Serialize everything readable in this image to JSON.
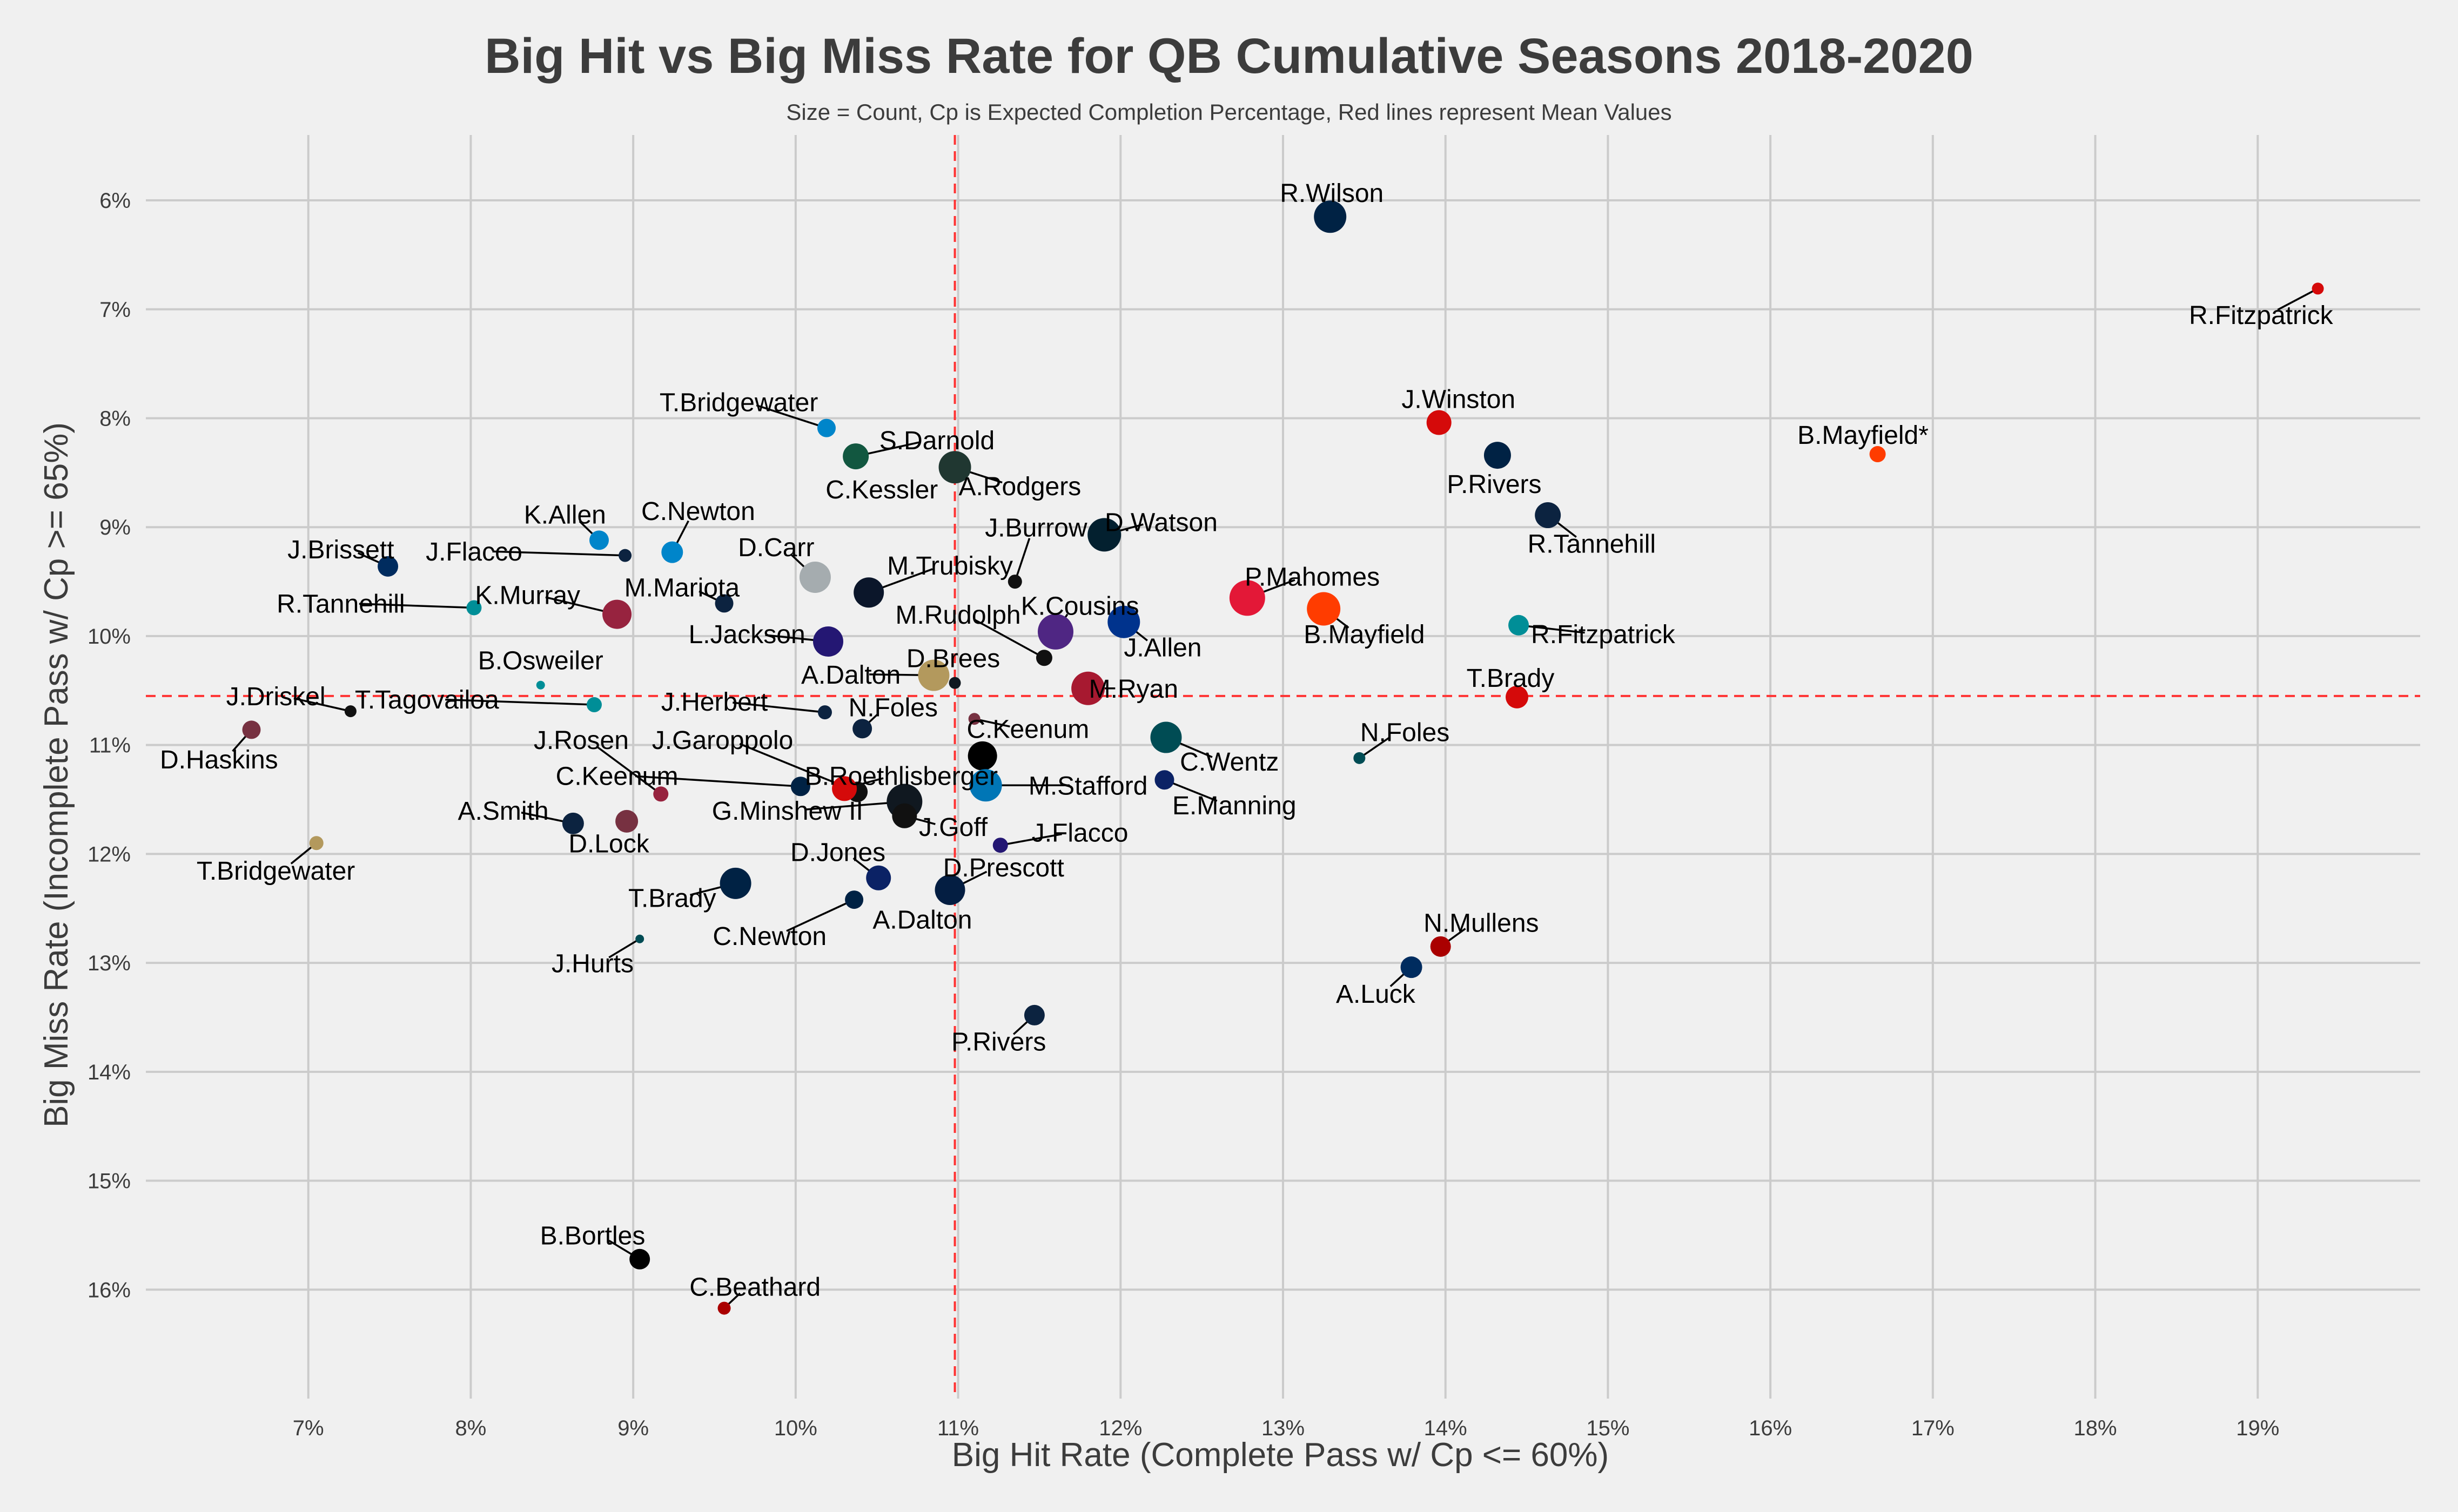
{
  "chart_data": {
    "type": "scatter",
    "title": "Big Hit vs Big Miss Rate for QB Cumulative Seasons 2018-2020",
    "subtitle": "Size = Count, Cp is Expected Completion Percentage, Red lines represent Mean Values",
    "xlabel": "Big Hit Rate (Complete Pass w/ Cp <= 60%)",
    "ylabel": "Big Miss Rate (Incomplete Pass w/ Cp >= 65%)",
    "xlim": [
      6.0,
      20.0
    ],
    "ylim": [
      5.4,
      17.0
    ],
    "y_inverted": true,
    "x_ticks": [
      7,
      8,
      9,
      10,
      11,
      12,
      13,
      14,
      15,
      16,
      17,
      18,
      19
    ],
    "x_tick_labels": [
      "7%",
      "8%",
      "9%",
      "10%",
      "11%",
      "12%",
      "13%",
      "14%",
      "15%",
      "16%",
      "17%",
      "18%",
      "19%"
    ],
    "y_ticks": [
      6,
      7,
      8,
      9,
      10,
      11,
      12,
      13,
      14,
      15,
      16
    ],
    "y_tick_labels": [
      "6%",
      "7%",
      "8%",
      "9%",
      "10%",
      "11%",
      "12%",
      "13%",
      "14%",
      "15%",
      "16%"
    ],
    "grid": true,
    "mean_lines": {
      "x": 10.98,
      "y": 10.55,
      "color": "#ff3333"
    },
    "points": [
      {
        "name": "R.Wilson",
        "x": 13.29,
        "y": 6.15,
        "size": 30,
        "color": "#002244",
        "lx": 13.3,
        "ly": 5.93
      },
      {
        "name": "R.Fitzpatrick",
        "x": 19.37,
        "y": 6.81,
        "size": 11,
        "color": "#d50a0a",
        "lx": 19.02,
        "ly": 7.05
      },
      {
        "name": "J.Winston",
        "x": 13.96,
        "y": 8.04,
        "size": 23,
        "color": "#d50a0a",
        "lx": 14.08,
        "ly": 7.82
      },
      {
        "name": "B.Mayfield*",
        "x": 16.66,
        "y": 8.33,
        "size": 15,
        "color": "#ff3c00",
        "lx": 16.57,
        "ly": 8.15
      },
      {
        "name": "P.Rivers",
        "x": 14.32,
        "y": 8.34,
        "size": 25,
        "color": "#002244",
        "lx": 14.3,
        "ly": 8.6
      },
      {
        "name": "R.Tannehill",
        "x": 14.63,
        "y": 8.89,
        "size": 24,
        "color": "#0c2340",
        "lx": 14.9,
        "ly": 9.15
      },
      {
        "name": "T.Bridgewater",
        "x": 10.19,
        "y": 8.09,
        "size": 17,
        "color": "#0085ca",
        "lx": 9.65,
        "ly": 7.85
      },
      {
        "name": "S.Darnold",
        "x": 10.37,
        "y": 8.35,
        "size": 24,
        "color": "#125740",
        "lx": 10.87,
        "ly": 8.2
      },
      {
        "name": "A.Rodgers",
        "x": 10.98,
        "y": 8.45,
        "size": 30,
        "color": "#203731",
        "lx": 11.38,
        "ly": 8.62
      },
      {
        "name": "C.Kessler",
        "x": 10.62,
        "y": 8.6,
        "size": 0,
        "color": "#000000",
        "lx": 10.53,
        "ly": 8.65
      },
      {
        "name": "D.Watson",
        "x": 11.9,
        "y": 9.07,
        "size": 31,
        "color": "#03202f",
        "lx": 12.25,
        "ly": 8.95
      },
      {
        "name": "J.Burrow",
        "x": 11.35,
        "y": 9.5,
        "size": 13,
        "color": "#111111",
        "lx": 11.48,
        "ly": 9.0
      },
      {
        "name": "C.Newton",
        "x": 9.24,
        "y": 9.23,
        "size": 20,
        "color": "#0085ca",
        "lx": 9.4,
        "ly": 8.85
      },
      {
        "name": "K.Allen",
        "x": 8.79,
        "y": 9.12,
        "size": 18,
        "color": "#0085ca",
        "lx": 8.58,
        "ly": 8.88
      },
      {
        "name": "J.Flacco",
        "x": 8.95,
        "y": 9.26,
        "size": 12,
        "color": "#0c2340",
        "lx": 8.02,
        "ly": 9.22
      },
      {
        "name": "J.Brissett",
        "x": 7.49,
        "y": 9.36,
        "size": 19,
        "color": "#002c5f",
        "lx": 7.2,
        "ly": 9.2
      },
      {
        "name": "R.Tannehill",
        "x": 8.02,
        "y": 9.74,
        "size": 14,
        "color": "#008e97",
        "lx": 7.2,
        "ly": 9.7
      },
      {
        "name": "D.Carr",
        "x": 10.12,
        "y": 9.46,
        "size": 29,
        "color": "#a5acaf",
        "lx": 9.88,
        "ly": 9.18
      },
      {
        "name": "M.Trubisky",
        "x": 10.45,
        "y": 9.6,
        "size": 28,
        "color": "#0b162a",
        "lx": 10.95,
        "ly": 9.35
      },
      {
        "name": "M.Mariota",
        "x": 9.56,
        "y": 9.7,
        "size": 17,
        "color": "#0c2340",
        "lx": 9.3,
        "ly": 9.55
      },
      {
        "name": "K.Murray",
        "x": 8.9,
        "y": 9.8,
        "size": 27,
        "color": "#97233f",
        "lx": 8.35,
        "ly": 9.62
      },
      {
        "name": "P.Mahomes",
        "x": 12.78,
        "y": 9.65,
        "size": 33,
        "color": "#e31837",
        "lx": 13.18,
        "ly": 9.45
      },
      {
        "name": "B.Mayfield",
        "x": 13.25,
        "y": 9.75,
        "size": 31,
        "color": "#ff3c00",
        "lx": 13.5,
        "ly": 9.98
      },
      {
        "name": "K.Cousins",
        "x": 11.6,
        "y": 9.96,
        "size": 33,
        "color": "#4f2683",
        "lx": 11.75,
        "ly": 9.72
      },
      {
        "name": "J.Allen",
        "x": 12.02,
        "y": 9.87,
        "size": 30,
        "color": "#00338d",
        "lx": 12.26,
        "ly": 10.1
      },
      {
        "name": "M.Rudolph",
        "x": 11.53,
        "y": 10.2,
        "size": 15,
        "color": "#111111",
        "lx": 11.0,
        "ly": 9.8
      },
      {
        "name": "R.Fitzpatrick",
        "x": 14.45,
        "y": 9.9,
        "size": 19,
        "color": "#008e97",
        "lx": 14.97,
        "ly": 9.98
      },
      {
        "name": "L.Jackson",
        "x": 10.2,
        "y": 10.05,
        "size": 28,
        "color": "#241773",
        "lx": 9.7,
        "ly": 9.98
      },
      {
        "name": "D.Brees",
        "x": 10.98,
        "y": 10.43,
        "size": 11,
        "color": "#101820",
        "lx": 10.97,
        "ly": 10.2
      },
      {
        "name": "A.Dalton",
        "x": 10.85,
        "y": 10.36,
        "size": 29,
        "color": "#b3995d",
        "lx": 10.34,
        "ly": 10.35
      },
      {
        "name": "B.Osweiler",
        "x": 8.43,
        "y": 10.45,
        "size": 8,
        "color": "#008e97",
        "lx": 8.43,
        "ly": 10.22
      },
      {
        "name": "T.Brady",
        "x": 14.44,
        "y": 10.56,
        "size": 21,
        "color": "#d50a0a",
        "lx": 14.4,
        "ly": 10.38
      },
      {
        "name": "M.Ryan",
        "x": 11.8,
        "y": 10.48,
        "size": 31,
        "color": "#a71930",
        "lx": 12.08,
        "ly": 10.48
      },
      {
        "name": "J.Driskel",
        "x": 7.26,
        "y": 10.69,
        "size": 11,
        "color": "#111111",
        "lx": 6.8,
        "ly": 10.55
      },
      {
        "name": "T.Tagovailoa",
        "x": 8.76,
        "y": 10.63,
        "size": 14,
        "color": "#008e97",
        "lx": 7.73,
        "ly": 10.58
      },
      {
        "name": "J.Herbert",
        "x": 10.18,
        "y": 10.7,
        "size": 13,
        "color": "#0c2340",
        "lx": 9.5,
        "ly": 10.6
      },
      {
        "name": "N.Foles",
        "x": 10.41,
        "y": 10.85,
        "size": 18,
        "color": "#0c2340",
        "lx": 10.6,
        "ly": 10.65
      },
      {
        "name": "C.Keenum",
        "x": 11.1,
        "y": 10.76,
        "size": 11,
        "color": "#773141",
        "lx": 11.43,
        "ly": 10.85
      },
      {
        "name": "D.Haskins",
        "x": 6.65,
        "y": 10.86,
        "size": 17,
        "color": "#773141",
        "lx": 6.45,
        "ly": 11.13
      },
      {
        "name": "C.Wentz",
        "x": 12.28,
        "y": 10.93,
        "size": 29,
        "color": "#004c54",
        "lx": 12.67,
        "ly": 11.15
      },
      {
        "name": "N.Foles",
        "x": 13.47,
        "y": 11.12,
        "size": 11,
        "color": "#004c54",
        "lx": 13.75,
        "ly": 10.88
      },
      {
        "name": "J.Rosen",
        "x": 9.17,
        "y": 11.45,
        "size": 14,
        "color": "#97233f",
        "lx": 8.68,
        "ly": 10.95
      },
      {
        "name": "J.Garoppolo",
        "x": 10.38,
        "y": 11.43,
        "size": 19,
        "color": "#111111",
        "lx": 9.55,
        "ly": 10.95
      },
      {
        "name": "C.Keenum",
        "x": 10.03,
        "y": 11.38,
        "size": 18,
        "color": "#002244",
        "lx": 8.9,
        "ly": 11.28
      },
      {
        "name": "B.Roethlisberger",
        "x": 10.3,
        "y": 11.4,
        "size": 23,
        "color": "#d50a0a",
        "lx": 10.65,
        "ly": 11.28
      },
      {
        "name": "C.Keenum",
        "x": 11.15,
        "y": 11.1,
        "size": 27,
        "color": "#000000",
        "lx": 11.15,
        "ly": 11.1,
        "nolabel": true
      },
      {
        "name": "M.Stafford",
        "x": 11.17,
        "y": 11.37,
        "size": 30,
        "color": "#0076b6",
        "lx": 11.8,
        "ly": 11.37
      },
      {
        "name": "E.Manning",
        "x": 12.27,
        "y": 11.32,
        "size": 18,
        "color": "#0b2265",
        "lx": 12.7,
        "ly": 11.55
      },
      {
        "name": "G.Minshew II",
        "x": 10.67,
        "y": 11.52,
        "size": 33,
        "color": "#101820",
        "lx": 9.95,
        "ly": 11.6
      },
      {
        "name": "J.Goff",
        "x": 10.67,
        "y": 11.65,
        "size": 23,
        "color": "#111111",
        "lx": 10.97,
        "ly": 11.75
      },
      {
        "name": "A.Smith",
        "x": 8.63,
        "y": 11.72,
        "size": 20,
        "color": "#0c2340",
        "lx": 8.2,
        "ly": 11.6
      },
      {
        "name": "D.Lock",
        "x": 8.96,
        "y": 11.7,
        "size": 21,
        "color": "#773141",
        "lx": 8.85,
        "ly": 11.9
      },
      {
        "name": "J.Flacco",
        "x": 11.26,
        "y": 11.92,
        "size": 14,
        "color": "#241773",
        "lx": 11.75,
        "ly": 11.8
      },
      {
        "name": "T.Bridgewater",
        "x": 7.05,
        "y": 11.9,
        "size": 13,
        "color": "#b3995d",
        "lx": 6.8,
        "ly": 12.15
      },
      {
        "name": "D.Jones",
        "x": 10.51,
        "y": 12.22,
        "size": 23,
        "color": "#0b2265",
        "lx": 10.26,
        "ly": 11.98
      },
      {
        "name": "D.Prescott",
        "x": 10.95,
        "y": 12.33,
        "size": 28,
        "color": "#041e42",
        "lx": 11.28,
        "ly": 12.12
      },
      {
        "name": "T.Brady",
        "x": 9.63,
        "y": 12.27,
        "size": 29,
        "color": "#002244",
        "lx": 9.24,
        "ly": 12.4
      },
      {
        "name": "C.Newton",
        "x": 10.36,
        "y": 12.42,
        "size": 17,
        "color": "#002244",
        "lx": 9.84,
        "ly": 12.75
      },
      {
        "name": "A.Dalton",
        "x": 10.75,
        "y": 12.55,
        "size": 0,
        "color": "#000000",
        "lx": 10.78,
        "ly": 12.6
      },
      {
        "name": "J.Hurts",
        "x": 9.04,
        "y": 12.78,
        "size": 8,
        "color": "#004c54",
        "lx": 8.75,
        "ly": 13.0
      },
      {
        "name": "N.Mullens",
        "x": 13.97,
        "y": 12.85,
        "size": 19,
        "color": "#aa0000",
        "lx": 14.22,
        "ly": 12.63
      },
      {
        "name": "A.Luck",
        "x": 13.79,
        "y": 13.04,
        "size": 20,
        "color": "#002c5f",
        "lx": 13.57,
        "ly": 13.28
      },
      {
        "name": "P.Rivers",
        "x": 11.47,
        "y": 13.48,
        "size": 19,
        "color": "#0c2340",
        "lx": 11.25,
        "ly": 13.72
      },
      {
        "name": "B.Bortles",
        "x": 9.04,
        "y": 15.72,
        "size": 19,
        "color": "#000000",
        "lx": 8.75,
        "ly": 15.5
      },
      {
        "name": "C.Beathard",
        "x": 9.56,
        "y": 16.17,
        "size": 12,
        "color": "#aa0000",
        "lx": 9.75,
        "ly": 15.97
      }
    ]
  }
}
